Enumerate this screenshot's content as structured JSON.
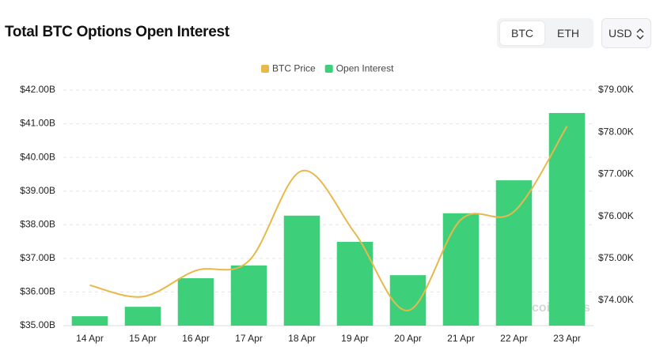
{
  "chart_data": {
    "type": "bar",
    "title": "Total BTC Options Open Interest",
    "categories": [
      "14 Apr",
      "15 Apr",
      "16 Apr",
      "17 Apr",
      "18 Apr",
      "19 Apr",
      "20 Apr",
      "21 Apr",
      "22 Apr",
      "23 Apr"
    ],
    "series": [
      {
        "name": "BTC Price",
        "type": "line",
        "axis": "y2",
        "color": "#e8b84a",
        "values": [
          74.36,
          74.09,
          74.71,
          74.94,
          77.08,
          75.6,
          73.76,
          75.92,
          76.11,
          78.14
        ]
      },
      {
        "name": "Open Interest",
        "type": "bar",
        "color": "#3ecf7a",
        "values": [
          35.28,
          35.56,
          36.41,
          36.79,
          38.27,
          37.49,
          36.5,
          38.34,
          39.32,
          41.32
        ]
      }
    ],
    "ylim": [
      35,
      42
    ],
    "yticks": [
      {
        "value": 35,
        "label": "$35.00B"
      },
      {
        "value": 36,
        "label": "$36.00B"
      },
      {
        "value": 37,
        "label": "$37.00B"
      },
      {
        "value": 38,
        "label": "$38.00B"
      },
      {
        "value": 39,
        "label": "$39.00B"
      },
      {
        "value": 40,
        "label": "$40.00B"
      },
      {
        "value": 41,
        "label": "$41.00B"
      },
      {
        "value": 42,
        "label": "$42.00B"
      }
    ],
    "y2lim": [
      73.4,
      79
    ],
    "y2ticks": [
      {
        "value": 74,
        "label": "$74.00K"
      },
      {
        "value": 75,
        "label": "$75.00K"
      },
      {
        "value": 76,
        "label": "$76.00K"
      },
      {
        "value": 77,
        "label": "$77.00K"
      },
      {
        "value": 78,
        "label": "$78.00K"
      },
      {
        "value": 79,
        "label": "$79.00K"
      }
    ],
    "grid": true,
    "legend": "top",
    "watermark": "coinglass"
  },
  "controls": {
    "coins": [
      "BTC",
      "ETH"
    ],
    "currency": "USD"
  }
}
